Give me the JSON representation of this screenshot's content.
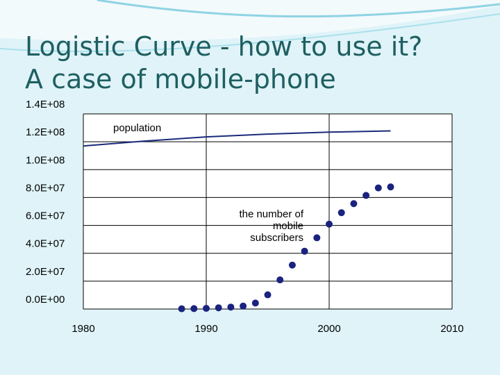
{
  "slide": {
    "title_line1": "Logistic Curve - how to use it?",
    "title_line2": "A case of mobile-phone",
    "accent_color": "#1f5f61",
    "background_color": "#dff3f8"
  },
  "chart_data": {
    "type": "line",
    "title": "",
    "xlabel": "",
    "ylabel": "",
    "xlim": [
      1980,
      2010
    ],
    "ylim": [
      0,
      140000000
    ],
    "grid": true,
    "x_ticks": [
      "1980",
      "1990",
      "2000",
      "2010"
    ],
    "y_ticks": [
      "0.0E+00",
      "2.0E+07",
      "4.0E+07",
      "6.0E+07",
      "8.0E+07",
      "1.0E+08",
      "1.2E+08",
      "1.4E+08"
    ],
    "annotations": [
      {
        "text": "population"
      },
      {
        "text_lines": [
          "the number of",
          "mobile",
          "subscribers"
        ]
      }
    ],
    "series": [
      {
        "type": "line",
        "color": "#1a2a7a",
        "points": [
          [
            1980,
            117000000
          ],
          [
            1985,
            120500000
          ],
          [
            1990,
            123500000
          ],
          [
            1995,
            125500000
          ],
          [
            2000,
            126900000
          ],
          [
            2005,
            127800000
          ]
        ]
      },
      {
        "type": "scatter",
        "color": "#1a237e",
        "points": [
          [
            1988,
            200000
          ],
          [
            1989,
            300000
          ],
          [
            1990,
            500000
          ],
          [
            1991,
            900000
          ],
          [
            1992,
            1400000
          ],
          [
            1993,
            2100000
          ],
          [
            1994,
            4300000
          ],
          [
            1995,
            10200000
          ],
          [
            1996,
            20900000
          ],
          [
            1997,
            31500000
          ],
          [
            1998,
            41500000
          ],
          [
            1999,
            51100000
          ],
          [
            2000,
            60900000
          ],
          [
            2001,
            69100000
          ],
          [
            2002,
            75600000
          ],
          [
            2003,
            81500000
          ],
          [
            2004,
            86900000
          ],
          [
            2005,
            87600000
          ]
        ]
      }
    ]
  }
}
